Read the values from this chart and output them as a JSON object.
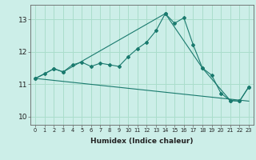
{
  "title": "",
  "xlabel": "Humidex (Indice chaleur)",
  "background_color": "#cceee8",
  "grid_color": "#aaddcc",
  "line_color": "#1a7a6e",
  "xlim": [
    -0.5,
    23.5
  ],
  "ylim": [
    9.75,
    13.45
  ],
  "yticks": [
    10,
    11,
    12,
    13
  ],
  "xtick_labels": [
    "0",
    "1",
    "2",
    "3",
    "4",
    "5",
    "6",
    "7",
    "8",
    "9",
    "10",
    "11",
    "12",
    "13",
    "14",
    "15",
    "16",
    "17",
    "18",
    "19",
    "20",
    "21",
    "22",
    "23"
  ],
  "line1_x": [
    0,
    1,
    2,
    3,
    4,
    5,
    6,
    7,
    8,
    9,
    10,
    11,
    12,
    13,
    14,
    15,
    16,
    17,
    18,
    19,
    20,
    21,
    22,
    23
  ],
  "line1_y": [
    11.18,
    11.32,
    11.48,
    11.38,
    11.6,
    11.68,
    11.55,
    11.65,
    11.6,
    11.55,
    11.85,
    12.1,
    12.3,
    12.65,
    13.18,
    12.88,
    13.05,
    12.22,
    11.5,
    11.28,
    10.72,
    10.5,
    10.48,
    10.92
  ],
  "line2_x": [
    0,
    23
  ],
  "line2_y": [
    11.18,
    10.48
  ],
  "line3_x": [
    0,
    2,
    3,
    14,
    18,
    21,
    22,
    23
  ],
  "line3_y": [
    11.18,
    11.48,
    11.38,
    13.18,
    11.5,
    10.5,
    10.48,
    10.92
  ]
}
